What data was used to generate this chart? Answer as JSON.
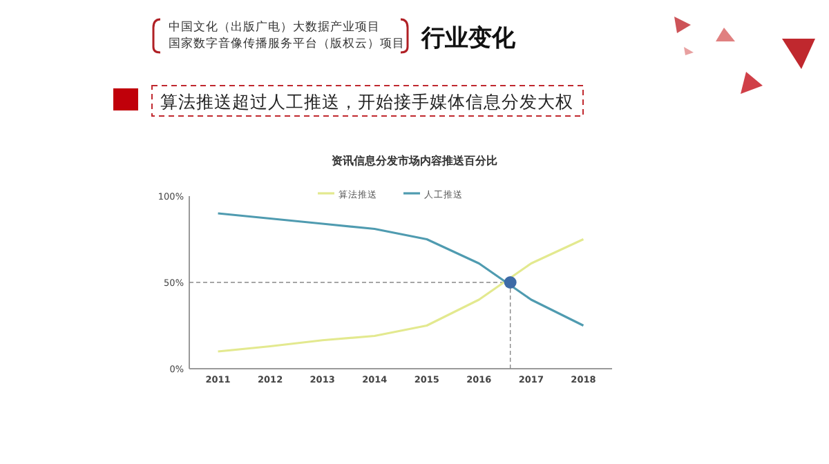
{
  "chart_data": {
    "type": "line",
    "title": "资讯信息分发市场内容推送百分比",
    "annotations": [
      "中国文化（出版广电）大数据产业项目",
      "国家数字音像传播服务平台（版权云）项目",
      "行业变化",
      "算法推送超过人工推送，开始接手媒体信息分发大权"
    ],
    "x": [
      2011,
      2012,
      2013,
      2014,
      2015,
      2016,
      2017,
      2018
    ],
    "series": [
      {
        "name": "算法推送",
        "color": "#e3e98f",
        "values": [
          10,
          13,
          16.5,
          19,
          25,
          40,
          61,
          75
        ]
      },
      {
        "name": "人工推送",
        "color": "#4f9bb0",
        "values": [
          90,
          87,
          84,
          81,
          75,
          61,
          40,
          25
        ]
      },
      {
        "type": "scatter",
        "marker": "circle",
        "color": "#3d6aa6",
        "x": [
          2016.6
        ],
        "values": [
          50
        ]
      }
    ],
    "xlim": [
      2010.45,
      2018.55
    ],
    "xticks": [
      2011,
      2012,
      2013,
      2014,
      2015,
      2016,
      2017,
      2018
    ],
    "ylim": [
      0,
      100
    ],
    "yticks": [
      {
        "value": 0,
        "label": "0%"
      },
      {
        "value": 50,
        "label": "50%"
      },
      {
        "value": 100,
        "label": "100%"
      }
    ],
    "ref_lines": [
      {
        "axis": "x",
        "value": 2016.6,
        "color": "#888888",
        "line_style": "dashed"
      },
      {
        "axis": "y",
        "value": 50,
        "color": "#888888",
        "line_style": "dashed"
      }
    ],
    "legend": "top",
    "grid": false,
    "line_style": "solid"
  }
}
